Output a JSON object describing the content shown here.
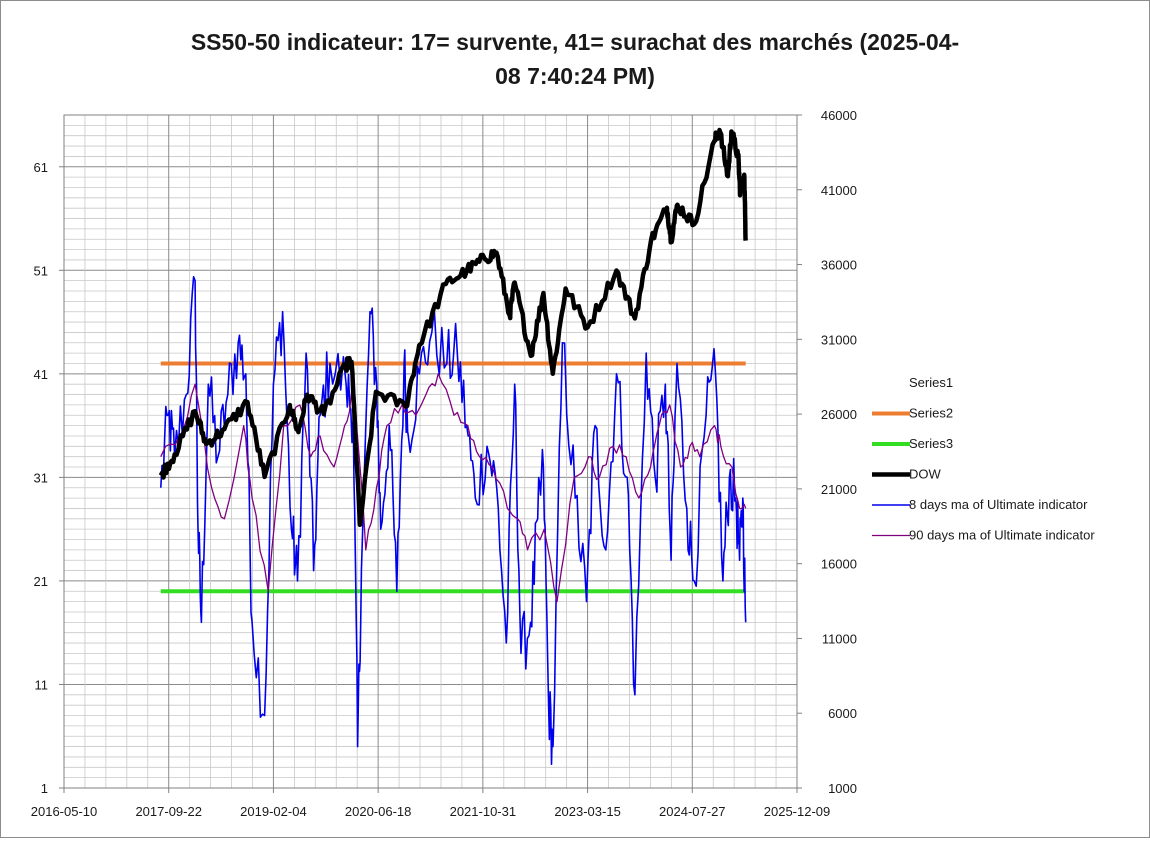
{
  "chart_data": {
    "type": "line",
    "title_line1": "SS50-50 indicateur: 17= survente, 41= surachat des marchés (2025-04-",
    "title_line2": "08 7:40:24 PM)",
    "x_tick_labels": [
      "2016-05-10",
      "2017-09-22",
      "2019-02-04",
      "2020-06-18",
      "2021-10-31",
      "2023-03-15",
      "2024-07-27",
      "2025-12-09"
    ],
    "x_range": [
      "2016-05-10",
      "2025-12-09"
    ],
    "y_left": {
      "ticks": [
        1,
        11,
        21,
        31,
        41,
        51,
        61
      ],
      "ylim": [
        1,
        66
      ]
    },
    "y_right": {
      "ticks": [
        1000,
        6000,
        11000,
        16000,
        21000,
        26000,
        31000,
        36000,
        41000,
        46000
      ],
      "ylim": [
        1000,
        46000
      ]
    },
    "legend": [
      "Series1",
      "Series2",
      "Series3",
      "DOW",
      "8 days ma of Ultimate indicator",
      "90 days ma of Ultimate indicator"
    ],
    "series": [
      {
        "name": "Series2",
        "axis": "left",
        "color": "#ed7d31",
        "constant": 42,
        "x_start": "2017-08-15",
        "x_end": "2025-04-08"
      },
      {
        "name": "Series3",
        "axis": "left",
        "color": "#33dd22",
        "constant": 20,
        "x_start": "2017-08-15",
        "x_end": "2025-04-08"
      },
      {
        "name": "DOW",
        "axis": "right",
        "color": "#000000",
        "points": [
          [
            "2017-08-15",
            21900
          ],
          [
            "2017-10-20",
            23300
          ],
          [
            "2018-01-26",
            26200
          ],
          [
            "2018-03-20",
            24000
          ],
          [
            "2018-06-15",
            25000
          ],
          [
            "2018-10-03",
            26800
          ],
          [
            "2018-12-24",
            21800
          ],
          [
            "2019-04-23",
            26600
          ],
          [
            "2019-06-03",
            24800
          ],
          [
            "2019-07-15",
            27300
          ],
          [
            "2019-10-02",
            26000
          ],
          [
            "2020-01-17",
            29300
          ],
          [
            "2020-02-12",
            29500
          ],
          [
            "2020-03-23",
            18600
          ],
          [
            "2020-06-08",
            27500
          ],
          [
            "2020-10-28",
            26500
          ],
          [
            "2020-12-31",
            30600
          ],
          [
            "2021-05-07",
            34700
          ],
          [
            "2021-08-16",
            35600
          ],
          [
            "2021-11-08",
            36400
          ],
          [
            "2022-01-04",
            36800
          ],
          [
            "2022-03-08",
            32600
          ],
          [
            "2022-04-01",
            34800
          ],
          [
            "2022-06-17",
            29900
          ],
          [
            "2022-08-16",
            34100
          ],
          [
            "2022-09-30",
            28700
          ],
          [
            "2022-11-30",
            34400
          ],
          [
            "2023-03-15",
            31800
          ],
          [
            "2023-07-31",
            35600
          ],
          [
            "2023-10-27",
            32400
          ],
          [
            "2024-01-12",
            37600
          ],
          [
            "2024-03-28",
            39800
          ],
          [
            "2024-04-17",
            37700
          ],
          [
            "2024-05-17",
            40000
          ],
          [
            "2024-08-05",
            38700
          ],
          [
            "2024-11-11",
            44300
          ],
          [
            "2024-12-04",
            45000
          ],
          [
            "2025-01-13",
            41900
          ],
          [
            "2025-01-30",
            44900
          ],
          [
            "2025-03-03",
            43200
          ],
          [
            "2025-03-13",
            40800
          ],
          [
            "2025-04-01",
            42000
          ],
          [
            "2025-04-08",
            37600
          ]
        ]
      },
      {
        "name": "8 days ma of Ultimate indicator",
        "axis": "left",
        "color": "#0000ee",
        "points": [
          [
            "2017-08-15",
            30
          ],
          [
            "2017-09-20",
            37
          ],
          [
            "2017-10-20",
            33
          ],
          [
            "2017-12-15",
            39
          ],
          [
            "2018-01-26",
            50
          ],
          [
            "2018-02-09",
            26
          ],
          [
            "2018-02-25",
            17
          ],
          [
            "2018-03-30",
            40
          ],
          [
            "2018-05-15",
            33
          ],
          [
            "2018-07-01",
            39
          ],
          [
            "2018-08-20",
            44
          ],
          [
            "2018-09-25",
            41
          ],
          [
            "2018-10-25",
            17
          ],
          [
            "2018-12-24",
            8
          ],
          [
            "2019-02-04",
            40
          ],
          [
            "2019-03-20",
            47
          ],
          [
            "2019-05-01",
            26
          ],
          [
            "2019-05-30",
            21
          ],
          [
            "2019-07-10",
            43
          ],
          [
            "2019-08-15",
            22
          ],
          [
            "2019-09-15",
            37
          ],
          [
            "2019-11-01",
            42
          ],
          [
            "2020-01-17",
            40
          ],
          [
            "2020-02-20",
            37
          ],
          [
            "2020-03-12",
            5
          ],
          [
            "2020-03-30",
            22
          ],
          [
            "2020-05-10",
            47
          ],
          [
            "2020-06-11",
            40
          ],
          [
            "2020-06-30",
            26
          ],
          [
            "2020-08-10",
            36
          ],
          [
            "2020-09-15",
            20
          ],
          [
            "2020-10-20",
            42
          ],
          [
            "2020-11-09",
            35
          ],
          [
            "2021-01-01",
            41
          ],
          [
            "2021-03-01",
            45
          ],
          [
            "2021-05-12",
            42
          ],
          [
            "2021-07-01",
            43
          ],
          [
            "2021-08-15",
            36
          ],
          [
            "2021-09-25",
            29
          ],
          [
            "2021-11-20",
            34
          ],
          [
            "2022-01-05",
            30
          ],
          [
            "2022-02-20",
            15
          ],
          [
            "2022-04-01",
            40
          ],
          [
            "2022-05-01",
            14
          ],
          [
            "2022-06-16",
            17
          ],
          [
            "2022-07-20",
            27
          ],
          [
            "2022-08-16",
            32
          ],
          [
            "2022-09-10",
            9
          ],
          [
            "2022-10-01",
            5
          ],
          [
            "2022-11-15",
            44
          ],
          [
            "2023-01-15",
            29
          ],
          [
            "2023-03-10",
            19
          ],
          [
            "2023-04-20",
            36
          ],
          [
            "2023-06-10",
            24
          ],
          [
            "2023-07-31",
            41
          ],
          [
            "2023-09-20",
            31
          ],
          [
            "2023-10-27",
            10
          ],
          [
            "2023-12-20",
            43
          ],
          [
            "2024-02-01",
            31
          ],
          [
            "2024-03-20",
            40
          ],
          [
            "2024-04-17",
            23
          ],
          [
            "2024-05-15",
            42
          ],
          [
            "2024-07-01",
            28
          ],
          [
            "2024-08-05",
            21
          ],
          [
            "2024-10-01",
            37
          ],
          [
            "2024-11-15",
            41
          ],
          [
            "2024-12-20",
            21
          ],
          [
            "2025-01-20",
            31
          ],
          [
            "2025-02-20",
            29
          ],
          [
            "2025-03-10",
            23
          ],
          [
            "2025-03-25",
            29
          ],
          [
            "2025-04-08",
            17
          ]
        ]
      },
      {
        "name": "90 days ma of Ultimate indicator",
        "axis": "left",
        "color": "#800080",
        "points": [
          [
            "2017-08-15",
            33
          ],
          [
            "2017-11-15",
            35
          ],
          [
            "2018-01-26",
            40
          ],
          [
            "2018-04-15",
            30
          ],
          [
            "2018-06-15",
            27
          ],
          [
            "2018-09-15",
            36
          ],
          [
            "2018-10-25",
            29
          ],
          [
            "2019-01-10",
            20
          ],
          [
            "2019-03-25",
            36
          ],
          [
            "2019-06-10",
            38
          ],
          [
            "2019-08-01",
            33
          ],
          [
            "2019-09-15",
            35
          ],
          [
            "2019-11-20",
            32
          ],
          [
            "2020-01-10",
            36
          ],
          [
            "2020-02-25",
            40
          ],
          [
            "2020-04-20",
            24
          ],
          [
            "2020-06-10",
            30
          ],
          [
            "2020-07-30",
            36
          ],
          [
            "2020-10-10",
            38
          ],
          [
            "2020-12-15",
            37
          ],
          [
            "2021-02-01",
            39
          ],
          [
            "2021-04-01",
            41
          ],
          [
            "2021-06-15",
            37
          ],
          [
            "2021-08-20",
            36
          ],
          [
            "2021-10-15",
            33
          ],
          [
            "2021-12-15",
            32
          ],
          [
            "2022-02-25",
            28
          ],
          [
            "2022-04-15",
            27
          ],
          [
            "2022-06-01",
            24
          ],
          [
            "2022-08-20",
            26
          ],
          [
            "2022-10-20",
            19
          ],
          [
            "2023-01-10",
            31
          ],
          [
            "2023-03-20",
            33
          ],
          [
            "2023-05-10",
            31
          ],
          [
            "2023-07-15",
            34
          ],
          [
            "2023-09-15",
            33
          ],
          [
            "2023-11-15",
            29
          ],
          [
            "2024-01-10",
            32
          ],
          [
            "2024-02-20",
            36
          ],
          [
            "2024-04-10",
            38
          ],
          [
            "2024-06-01",
            32
          ],
          [
            "2024-07-15",
            34
          ],
          [
            "2024-09-01",
            33
          ],
          [
            "2024-11-10",
            36
          ],
          [
            "2024-12-10",
            34
          ],
          [
            "2025-02-01",
            32
          ],
          [
            "2025-03-10",
            28
          ],
          [
            "2025-04-08",
            28
          ]
        ]
      }
    ]
  }
}
